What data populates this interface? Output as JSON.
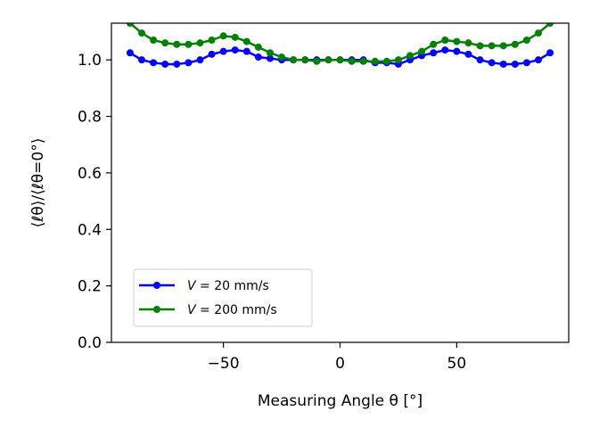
{
  "chart_data": {
    "type": "line",
    "title": "",
    "xlabel": "Measuring Angle θ [°]",
    "ylabel": "⟨ℓθ⟩/⟨ℓθ=0°⟩",
    "xlim": [
      -98,
      98
    ],
    "ylim": [
      0.0,
      1.13
    ],
    "xticks": [
      -50,
      0,
      50
    ],
    "xtick_labels": [
      "−50",
      "0",
      "50"
    ],
    "yticks": [
      0.0,
      0.2,
      0.4,
      0.6,
      0.8,
      1.0
    ],
    "ytick_labels": [
      "0.0",
      "0.2",
      "0.4",
      "0.6",
      "0.8",
      "1.0"
    ],
    "grid": false,
    "legend_position": "lower-left",
    "x": [
      -90,
      -85,
      -80,
      -75,
      -70,
      -65,
      -60,
      -55,
      -50,
      -45,
      -40,
      -35,
      -30,
      -25,
      -20,
      -15,
      -10,
      -5,
      0,
      5,
      10,
      15,
      20,
      25,
      30,
      35,
      40,
      45,
      50,
      55,
      60,
      65,
      70,
      75,
      80,
      85,
      90
    ],
    "series": [
      {
        "name": "V = 20 mm/s",
        "color": "#0000ff",
        "values": [
          1.025,
          1.0,
          0.99,
          0.985,
          0.985,
          0.99,
          1.0,
          1.02,
          1.03,
          1.035,
          1.03,
          1.01,
          1.005,
          1.0,
          1.0,
          1.0,
          1.0,
          1.0,
          1.0,
          1.0,
          1.0,
          0.99,
          0.99,
          0.985,
          1.0,
          1.015,
          1.025,
          1.035,
          1.03,
          1.02,
          1.0,
          0.99,
          0.985,
          0.985,
          0.99,
          1.0,
          1.025
        ]
      },
      {
        "name": "V = 200 mm/s",
        "color": "#008000",
        "values": [
          1.13,
          1.095,
          1.07,
          1.06,
          1.055,
          1.055,
          1.06,
          1.07,
          1.085,
          1.08,
          1.065,
          1.045,
          1.025,
          1.01,
          1.0,
          1.0,
          0.995,
          1.0,
          1.0,
          0.995,
          0.995,
          0.995,
          0.995,
          1.0,
          1.015,
          1.03,
          1.055,
          1.07,
          1.065,
          1.06,
          1.05,
          1.05,
          1.05,
          1.055,
          1.07,
          1.095,
          1.13
        ]
      }
    ],
    "legend": {
      "entries": [
        {
          "prefix": "V",
          "rest": " = 20 mm/s"
        },
        {
          "prefix": "V",
          "rest": " = 200 mm/s"
        }
      ]
    }
  }
}
